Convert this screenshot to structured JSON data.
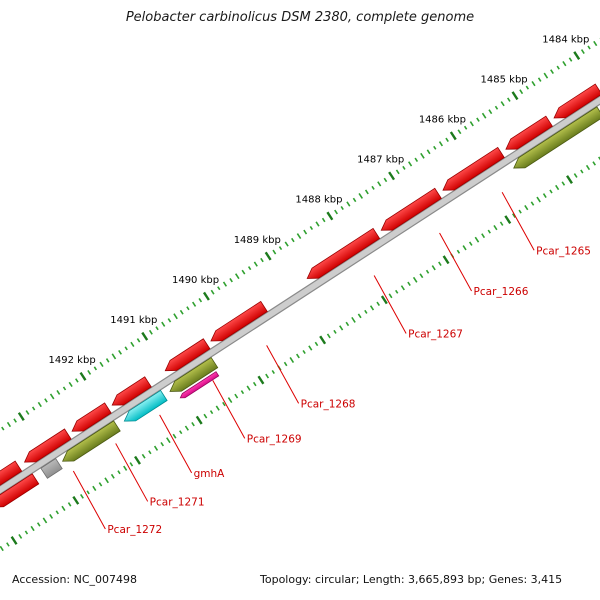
{
  "title": "Pelobacter carbinolicus DSM 2380, complete genome",
  "status_bar": {
    "accession": "Accession: NC_007498",
    "topology": "Topology: circular; Length: 3,665,893 bp; Genes: 3,415"
  },
  "map": {
    "unit": "kbp",
    "ticks": [
      {
        "kbp": 1484,
        "label": "1484 kbp"
      },
      {
        "kbp": 1485,
        "label": "1485 kbp"
      },
      {
        "kbp": 1486,
        "label": "1486 kbp"
      },
      {
        "kbp": 1487,
        "label": "1487 kbp"
      },
      {
        "kbp": 1488,
        "label": "1488 kbp"
      },
      {
        "kbp": 1489,
        "label": "1489 kbp"
      },
      {
        "kbp": 1490,
        "label": "1490 kbp"
      },
      {
        "kbp": 1491,
        "label": "1491 kbp"
      },
      {
        "kbp": 1492,
        "label": "1492 kbp"
      }
    ],
    "colors": {
      "red": {
        "top": "#ff4a4a",
        "bottom": "#cf0000",
        "stroke": "#9a0000"
      },
      "olive": {
        "top": "#b4c04c",
        "bottom": "#697c1d",
        "stroke": "#4c5a13"
      },
      "cyan": {
        "top": "#8af0f2",
        "bottom": "#00bcc4",
        "stroke": "#008b91"
      },
      "magenta": {
        "top": "#ff3dae",
        "bottom": "#d60b87",
        "stroke": "#97085f"
      },
      "gray": {
        "top": "#b9b9b9",
        "bottom": "#8f8f8f",
        "stroke": "#6e6e6e"
      },
      "backbone_fill": "#cdcdcd",
      "backbone_stroke": "#8a8a8a",
      "tick_minor": "#2fa02f",
      "tick_major": "#1c7a1c",
      "label_red": "#cc0000",
      "leader_red": "#dd0000"
    },
    "genes": [
      {
        "label": "",
        "start_kbp": 1484.0,
        "end_kbp": 1484.72,
        "strand": "above",
        "color": "red"
      },
      {
        "label": "",
        "start_kbp": 1484.8,
        "end_kbp": 1485.5,
        "strand": "above",
        "color": "red"
      },
      {
        "label": "Pcar_1265",
        "start_kbp": 1485.58,
        "end_kbp": 1486.52,
        "strand": "above",
        "color": "red"
      },
      {
        "label": "Pcar_1266",
        "start_kbp": 1486.6,
        "end_kbp": 1487.52,
        "strand": "above",
        "color": "red"
      },
      {
        "label": "Pcar_1267",
        "start_kbp": 1487.6,
        "end_kbp": 1488.72,
        "strand": "above",
        "color": "red"
      },
      {
        "label": "Pcar_1268",
        "start_kbp": 1489.42,
        "end_kbp": 1490.28,
        "strand": "above",
        "color": "red"
      },
      {
        "label": "Pcar_1269",
        "start_kbp": 1490.35,
        "end_kbp": 1491.02,
        "strand": "above",
        "color": "red"
      },
      {
        "label": "",
        "start_kbp": 1491.3,
        "end_kbp": 1491.88,
        "strand": "above",
        "color": "red"
      },
      {
        "label": "Pcar_1271",
        "start_kbp": 1491.95,
        "end_kbp": 1492.53,
        "strand": "above",
        "color": "red"
      },
      {
        "label": "Pcar_1272",
        "start_kbp": 1492.6,
        "end_kbp": 1493.3,
        "strand": "above",
        "color": "red"
      },
      {
        "label": "",
        "start_kbp": 1493.4,
        "end_kbp": 1494.15,
        "strand": "above",
        "color": "red"
      },
      {
        "label": "",
        "start_kbp": 1484.15,
        "end_kbp": 1485.55,
        "strand": "below",
        "color": "olive"
      },
      {
        "label": "",
        "start_kbp": 1490.4,
        "end_kbp": 1491.12,
        "strand": "below",
        "color": "olive"
      },
      {
        "label": "",
        "start_kbp": 1490.45,
        "end_kbp": 1491.05,
        "strand": "below2",
        "color": "magenta"
      },
      {
        "label": "gmhA",
        "start_kbp": 1491.22,
        "end_kbp": 1491.86,
        "strand": "below",
        "color": "cyan"
      },
      {
        "label": "",
        "start_kbp": 1491.98,
        "end_kbp": 1492.86,
        "strand": "below",
        "color": "olive"
      },
      {
        "label": "",
        "start_kbp": 1492.92,
        "end_kbp": 1493.16,
        "strand": "below",
        "color": "gray",
        "shape": "box"
      },
      {
        "label": "",
        "start_kbp": 1493.3,
        "end_kbp": 1494.0,
        "strand": "below",
        "color": "red"
      }
    ]
  }
}
